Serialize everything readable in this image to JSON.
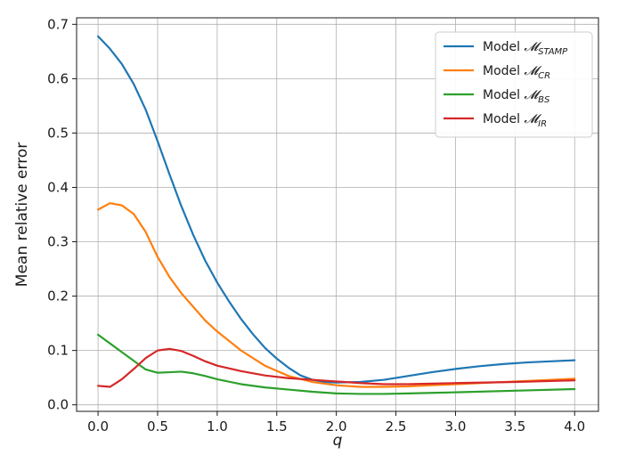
{
  "chart_data": {
    "type": "line",
    "xlabel": "q",
    "ylabel": "Mean relative error",
    "xlim": [
      -0.18,
      4.2
    ],
    "ylim": [
      -0.012,
      0.712
    ],
    "xticks": [
      "0.0",
      "0.5",
      "1.0",
      "1.5",
      "2.0",
      "2.5",
      "3.0",
      "3.5",
      "4.0"
    ],
    "yticks": [
      "0.0",
      "0.1",
      "0.2",
      "0.3",
      "0.4",
      "0.5",
      "0.6",
      "0.7"
    ],
    "grid": true,
    "legend_position": "top-right",
    "series": [
      {
        "name": "Model 𝓜STAMP",
        "legend_prefix": "Model ",
        "legend_script": "𝓜",
        "legend_sub": "STAMP",
        "color": "#1f77b4",
        "x": [
          0.0,
          0.1,
          0.2,
          0.3,
          0.4,
          0.5,
          0.6,
          0.7,
          0.8,
          0.9,
          1.0,
          1.1,
          1.2,
          1.3,
          1.4,
          1.5,
          1.6,
          1.7,
          1.8,
          1.9,
          2.0,
          2.2,
          2.4,
          2.6,
          2.8,
          3.0,
          3.2,
          3.4,
          3.6,
          3.8,
          4.0
        ],
        "y": [
          0.678,
          0.655,
          0.627,
          0.59,
          0.543,
          0.485,
          0.424,
          0.365,
          0.312,
          0.265,
          0.225,
          0.19,
          0.158,
          0.13,
          0.105,
          0.085,
          0.068,
          0.054,
          0.046,
          0.042,
          0.041,
          0.042,
          0.046,
          0.053,
          0.06,
          0.066,
          0.071,
          0.075,
          0.078,
          0.08,
          0.082
        ]
      },
      {
        "name": "Model 𝓜CR",
        "legend_prefix": "Model ",
        "legend_script": "𝓜",
        "legend_sub": "CR",
        "color": "#ff7f0e",
        "x": [
          0.0,
          0.1,
          0.2,
          0.3,
          0.4,
          0.5,
          0.6,
          0.7,
          0.8,
          0.9,
          1.0,
          1.2,
          1.4,
          1.6,
          1.8,
          2.0,
          2.2,
          2.4,
          2.6,
          2.8,
          3.0,
          3.5,
          4.0
        ],
        "y": [
          0.359,
          0.371,
          0.367,
          0.351,
          0.318,
          0.272,
          0.235,
          0.205,
          0.18,
          0.155,
          0.135,
          0.1,
          0.072,
          0.053,
          0.042,
          0.036,
          0.033,
          0.033,
          0.034,
          0.036,
          0.038,
          0.043,
          0.048
        ]
      },
      {
        "name": "Model 𝓜BS",
        "legend_prefix": "Model ",
        "legend_script": "𝓜",
        "legend_sub": "BS",
        "color": "#2ca02c",
        "x": [
          0.0,
          0.1,
          0.2,
          0.3,
          0.4,
          0.5,
          0.6,
          0.7,
          0.8,
          0.9,
          1.0,
          1.2,
          1.4,
          1.6,
          1.8,
          2.0,
          2.2,
          2.4,
          2.6,
          2.8,
          3.0,
          3.5,
          4.0
        ],
        "y": [
          0.129,
          0.113,
          0.097,
          0.081,
          0.065,
          0.059,
          0.06,
          0.061,
          0.058,
          0.053,
          0.047,
          0.038,
          0.032,
          0.028,
          0.024,
          0.021,
          0.02,
          0.02,
          0.021,
          0.022,
          0.023,
          0.026,
          0.029
        ]
      },
      {
        "name": "Model 𝓜IR",
        "legend_prefix": "Model ",
        "legend_script": "𝓜",
        "legend_sub": "IR",
        "color": "#d62728",
        "x": [
          0.0,
          0.1,
          0.2,
          0.3,
          0.4,
          0.5,
          0.6,
          0.7,
          0.8,
          0.9,
          1.0,
          1.2,
          1.4,
          1.6,
          1.8,
          2.0,
          2.2,
          2.4,
          2.6,
          2.8,
          3.0,
          3.5,
          4.0
        ],
        "y": [
          0.035,
          0.033,
          0.047,
          0.066,
          0.086,
          0.1,
          0.103,
          0.099,
          0.09,
          0.08,
          0.072,
          0.062,
          0.054,
          0.049,
          0.046,
          0.043,
          0.04,
          0.038,
          0.038,
          0.039,
          0.04,
          0.042,
          0.045
        ]
      }
    ]
  }
}
